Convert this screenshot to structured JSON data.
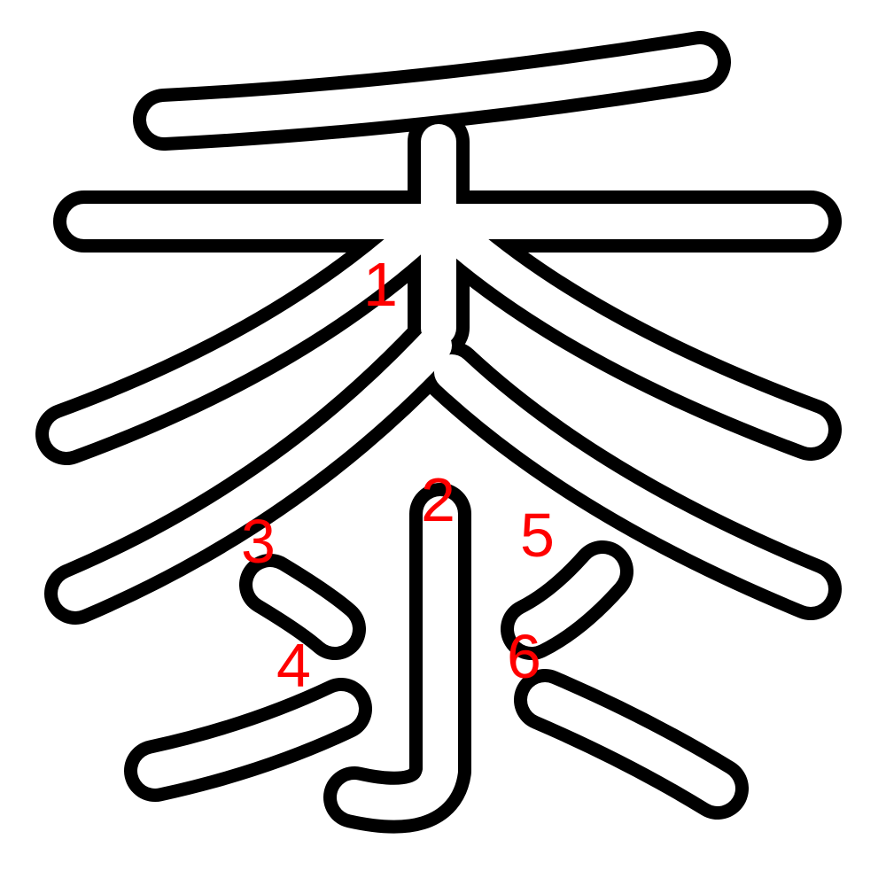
{
  "character": "黍",
  "colors": {
    "outline": "#000000",
    "fill": "#ffffff",
    "number": "#ff0000"
  },
  "stroke_numbers": [
    {
      "id": "stroke-1",
      "label": "1"
    },
    {
      "id": "stroke-2",
      "label": "2"
    },
    {
      "id": "stroke-3",
      "label": "3"
    },
    {
      "id": "stroke-4",
      "label": "4"
    },
    {
      "id": "stroke-5",
      "label": "5"
    },
    {
      "id": "stroke-6",
      "label": "6"
    }
  ]
}
